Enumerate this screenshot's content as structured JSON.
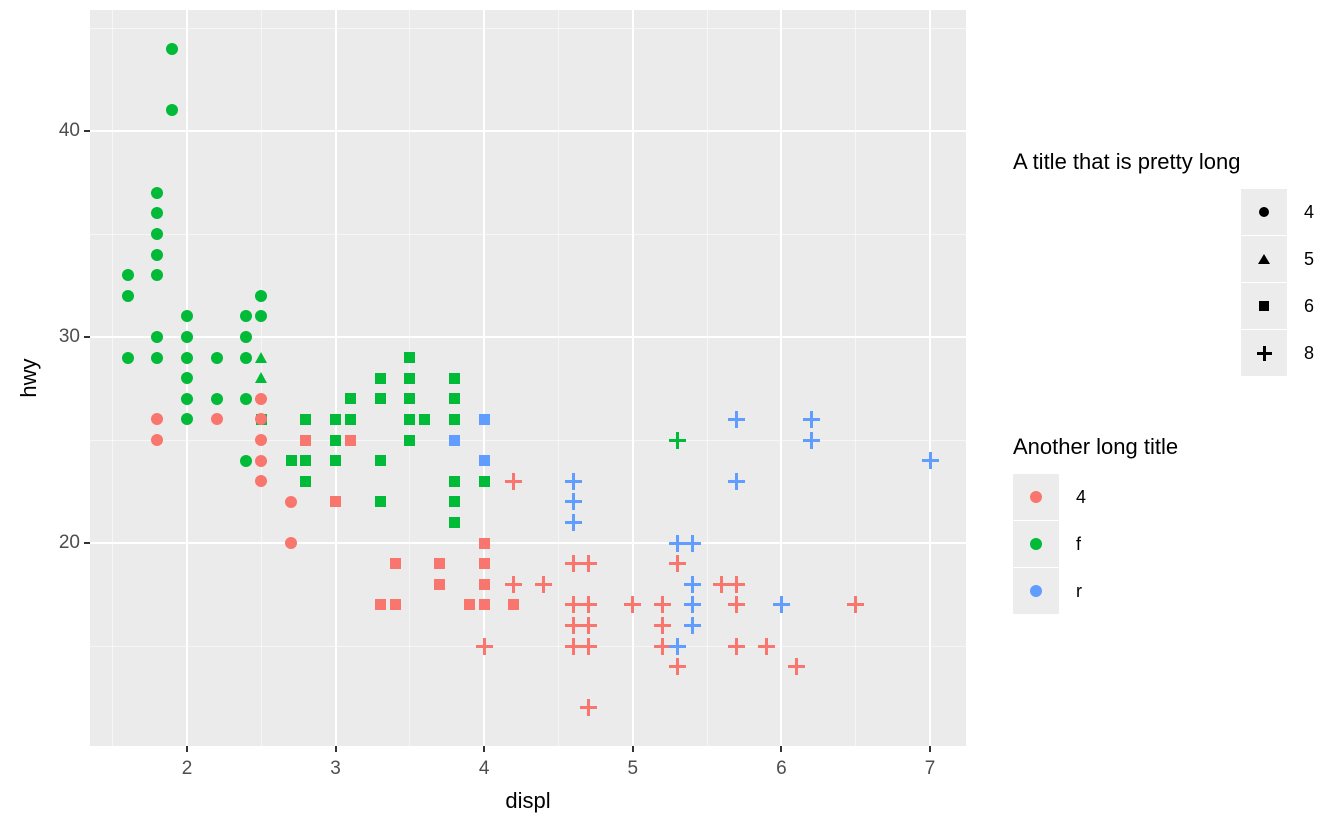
{
  "chart_data": {
    "type": "scatter",
    "xlabel": "displ",
    "ylabel": "hwy",
    "x_ticks": [
      2,
      3,
      4,
      5,
      6,
      7
    ],
    "y_ticks": [
      20,
      30,
      40
    ],
    "x_minor_gridlines": [
      1.5,
      2.5,
      3.5,
      4.5,
      5.5,
      6.5
    ],
    "y_minor_gridlines": [
      15,
      25,
      35,
      45
    ],
    "xlim": [
      1.35,
      7.24
    ],
    "ylim": [
      10.2,
      45.9
    ],
    "grid": true,
    "panel_bg": "#EBEBEB",
    "gridline_color": "#FFFFFF",
    "tick_label_color": "#4D4D4D",
    "shape_map_by_cyl": {
      "4": "circle",
      "5": "triangle",
      "6": "square",
      "8": "plus"
    },
    "color_map_by_drv": {
      "4": "#F8766D",
      "f": "#00BA38",
      "r": "#619CFF"
    },
    "legends": [
      {
        "title": "A title that is pretty long",
        "aesthetic": "shape",
        "position": "right",
        "entries": [
          {
            "label": "4",
            "shape": "circle"
          },
          {
            "label": "5",
            "shape": "triangle"
          },
          {
            "label": "6",
            "shape": "square"
          },
          {
            "label": "8",
            "shape": "plus"
          }
        ]
      },
      {
        "title": "Another long title",
        "aesthetic": "color",
        "position": "right",
        "entries": [
          {
            "label": "4",
            "color": "#F8766D"
          },
          {
            "label": "f",
            "color": "#00BA38"
          },
          {
            "label": "r",
            "color": "#619CFF"
          }
        ]
      }
    ],
    "columns": [
      "displ",
      "hwy",
      "cyl",
      "drv"
    ],
    "points": [
      [
        1.6,
        33,
        4,
        "f"
      ],
      [
        1.6,
        32,
        4,
        "f"
      ],
      [
        1.6,
        29,
        4,
        "f"
      ],
      [
        1.8,
        37,
        4,
        "f"
      ],
      [
        1.8,
        36,
        4,
        "f"
      ],
      [
        1.8,
        35,
        4,
        "f"
      ],
      [
        1.8,
        34,
        4,
        "f"
      ],
      [
        1.8,
        33,
        4,
        "f"
      ],
      [
        1.8,
        30,
        4,
        "f"
      ],
      [
        1.8,
        29,
        4,
        "f"
      ],
      [
        1.9,
        44,
        4,
        "f"
      ],
      [
        1.9,
        41,
        4,
        "f"
      ],
      [
        2.0,
        31,
        4,
        "f"
      ],
      [
        2.0,
        30,
        4,
        "f"
      ],
      [
        2.0,
        29,
        4,
        "f"
      ],
      [
        2.0,
        28,
        4,
        "f"
      ],
      [
        2.0,
        27,
        4,
        "f"
      ],
      [
        2.0,
        26,
        4,
        "f"
      ],
      [
        2.2,
        29,
        4,
        "f"
      ],
      [
        2.2,
        27,
        4,
        "f"
      ],
      [
        2.4,
        31,
        4,
        "f"
      ],
      [
        2.4,
        30,
        4,
        "f"
      ],
      [
        2.4,
        29,
        4,
        "f"
      ],
      [
        2.4,
        27,
        4,
        "f"
      ],
      [
        2.4,
        24,
        4,
        "f"
      ],
      [
        2.5,
        32,
        4,
        "f"
      ],
      [
        2.5,
        31,
        4,
        "f"
      ],
      [
        2.5,
        29,
        5,
        "f"
      ],
      [
        2.5,
        28,
        5,
        "f"
      ],
      [
        2.5,
        26,
        6,
        "f"
      ],
      [
        2.7,
        24,
        6,
        "f"
      ],
      [
        2.8,
        26,
        6,
        "f"
      ],
      [
        2.8,
        24,
        6,
        "f"
      ],
      [
        2.8,
        23,
        6,
        "f"
      ],
      [
        3.0,
        26,
        6,
        "f"
      ],
      [
        3.0,
        25,
        6,
        "f"
      ],
      [
        3.0,
        24,
        6,
        "f"
      ],
      [
        3.1,
        27,
        6,
        "f"
      ],
      [
        3.1,
        26,
        6,
        "f"
      ],
      [
        3.3,
        28,
        6,
        "f"
      ],
      [
        3.3,
        27,
        6,
        "f"
      ],
      [
        3.3,
        24,
        6,
        "f"
      ],
      [
        3.3,
        22,
        6,
        "f"
      ],
      [
        3.5,
        29,
        6,
        "f"
      ],
      [
        3.5,
        28,
        6,
        "f"
      ],
      [
        3.5,
        27,
        6,
        "f"
      ],
      [
        3.5,
        26,
        6,
        "f"
      ],
      [
        3.5,
        25,
        6,
        "f"
      ],
      [
        3.6,
        26,
        6,
        "f"
      ],
      [
        3.8,
        28,
        6,
        "f"
      ],
      [
        3.8,
        27,
        6,
        "f"
      ],
      [
        3.8,
        26,
        6,
        "f"
      ],
      [
        3.8,
        23,
        6,
        "f"
      ],
      [
        3.8,
        22,
        6,
        "f"
      ],
      [
        3.8,
        21,
        6,
        "f"
      ],
      [
        4.0,
        23,
        6,
        "f"
      ],
      [
        5.3,
        25,
        8,
        "f"
      ],
      [
        1.8,
        26,
        4,
        "4"
      ],
      [
        1.8,
        25,
        4,
        "4"
      ],
      [
        2.2,
        26,
        4,
        "4"
      ],
      [
        2.5,
        27,
        4,
        "4"
      ],
      [
        2.5,
        26,
        4,
        "4"
      ],
      [
        2.5,
        25,
        4,
        "4"
      ],
      [
        2.5,
        24,
        4,
        "4"
      ],
      [
        2.5,
        23,
        4,
        "4"
      ],
      [
        2.7,
        22,
        4,
        "4"
      ],
      [
        2.7,
        20,
        4,
        "4"
      ],
      [
        2.8,
        25,
        6,
        "4"
      ],
      [
        3.0,
        22,
        6,
        "4"
      ],
      [
        3.1,
        25,
        6,
        "4"
      ],
      [
        3.3,
        17,
        6,
        "4"
      ],
      [
        3.4,
        19,
        6,
        "4"
      ],
      [
        3.4,
        17,
        6,
        "4"
      ],
      [
        3.7,
        19,
        6,
        "4"
      ],
      [
        3.7,
        18,
        6,
        "4"
      ],
      [
        3.9,
        17,
        6,
        "4"
      ],
      [
        4.0,
        20,
        6,
        "4"
      ],
      [
        4.0,
        19,
        6,
        "4"
      ],
      [
        4.0,
        18,
        6,
        "4"
      ],
      [
        4.0,
        17,
        6,
        "4"
      ],
      [
        4.2,
        17,
        6,
        "4"
      ],
      [
        4.0,
        15,
        8,
        "4"
      ],
      [
        4.2,
        23,
        8,
        "4"
      ],
      [
        4.2,
        18,
        8,
        "4"
      ],
      [
        4.4,
        18,
        8,
        "4"
      ],
      [
        4.6,
        19,
        8,
        "4"
      ],
      [
        4.6,
        17,
        8,
        "4"
      ],
      [
        4.6,
        16,
        8,
        "4"
      ],
      [
        4.6,
        15,
        8,
        "4"
      ],
      [
        4.7,
        19,
        8,
        "4"
      ],
      [
        4.7,
        17,
        8,
        "4"
      ],
      [
        4.7,
        16,
        8,
        "4"
      ],
      [
        4.7,
        15,
        8,
        "4"
      ],
      [
        4.7,
        12,
        8,
        "4"
      ],
      [
        5.0,
        17,
        8,
        "4"
      ],
      [
        5.2,
        17,
        8,
        "4"
      ],
      [
        5.2,
        16,
        8,
        "4"
      ],
      [
        5.2,
        15,
        8,
        "4"
      ],
      [
        5.3,
        19,
        8,
        "4"
      ],
      [
        5.3,
        14,
        8,
        "4"
      ],
      [
        5.6,
        18,
        8,
        "4"
      ],
      [
        5.7,
        18,
        8,
        "4"
      ],
      [
        5.7,
        17,
        8,
        "4"
      ],
      [
        5.7,
        15,
        8,
        "4"
      ],
      [
        5.9,
        15,
        8,
        "4"
      ],
      [
        6.1,
        14,
        8,
        "4"
      ],
      [
        6.5,
        17,
        8,
        "4"
      ],
      [
        3.8,
        25,
        6,
        "r"
      ],
      [
        4.0,
        26,
        6,
        "r"
      ],
      [
        4.0,
        24,
        6,
        "r"
      ],
      [
        4.6,
        23,
        8,
        "r"
      ],
      [
        4.6,
        22,
        8,
        "r"
      ],
      [
        4.6,
        21,
        8,
        "r"
      ],
      [
        5.3,
        20,
        8,
        "r"
      ],
      [
        5.3,
        15,
        8,
        "r"
      ],
      [
        5.4,
        20,
        8,
        "r"
      ],
      [
        5.4,
        18,
        8,
        "r"
      ],
      [
        5.4,
        17,
        8,
        "r"
      ],
      [
        5.4,
        16,
        8,
        "r"
      ],
      [
        5.7,
        26,
        8,
        "r"
      ],
      [
        5.7,
        23,
        8,
        "r"
      ],
      [
        6.0,
        17,
        8,
        "r"
      ],
      [
        6.2,
        26,
        8,
        "r"
      ],
      [
        6.2,
        25,
        8,
        "r"
      ],
      [
        7.0,
        24,
        8,
        "r"
      ]
    ]
  }
}
